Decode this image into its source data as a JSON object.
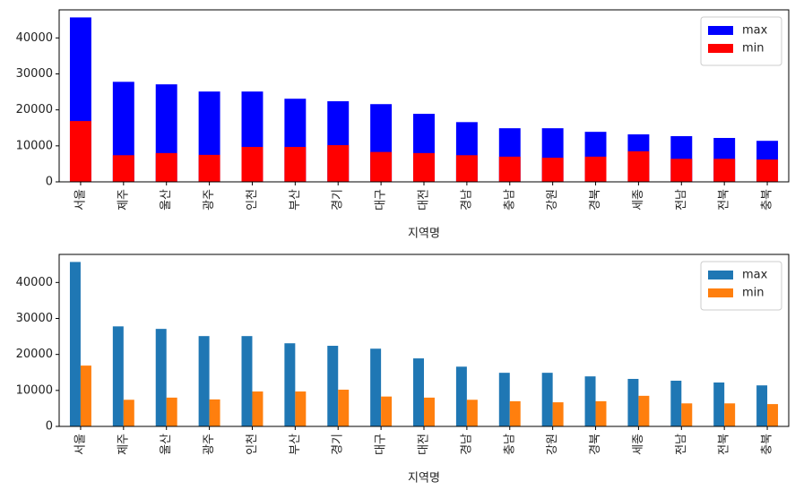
{
  "chart_data": [
    {
      "type": "bar",
      "barmode": "overlay",
      "x_label": "지역명",
      "categories": [
        "서울",
        "제주",
        "울산",
        "광주",
        "인천",
        "부산",
        "경기",
        "대구",
        "대전",
        "경남",
        "충남",
        "강원",
        "경북",
        "세종",
        "전남",
        "전북",
        "충북"
      ],
      "series": [
        {
          "name": "max",
          "color": "#0000ff",
          "values": [
            45700,
            27800,
            27100,
            25100,
            25100,
            23100,
            22400,
            21600,
            18900,
            16600,
            14900,
            14900,
            13900,
            13200,
            12700,
            12200,
            11400
          ]
        },
        {
          "name": "min",
          "color": "#ff0000",
          "values": [
            16900,
            7400,
            8000,
            7500,
            9700,
            9700,
            10200,
            8300,
            8000,
            7400,
            7000,
            6700,
            7000,
            8500,
            6400,
            6400,
            6200
          ]
        }
      ],
      "ylim": [
        0,
        47800
      ],
      "yticks": [
        0,
        10000,
        20000,
        30000,
        40000
      ],
      "legend": "upper right"
    },
    {
      "type": "bar",
      "barmode": "group",
      "x_label": "지역명",
      "categories": [
        "서울",
        "제주",
        "울산",
        "광주",
        "인천",
        "부산",
        "경기",
        "대구",
        "대전",
        "경남",
        "충남",
        "강원",
        "경북",
        "세종",
        "전남",
        "전북",
        "충북"
      ],
      "series": [
        {
          "name": "max",
          "color": "#1f77b4",
          "values": [
            45700,
            27800,
            27100,
            25100,
            25100,
            23100,
            22400,
            21600,
            18900,
            16600,
            14900,
            14900,
            13900,
            13200,
            12700,
            12200,
            11400
          ]
        },
        {
          "name": "min",
          "color": "#ff7f0e",
          "values": [
            16900,
            7400,
            8000,
            7500,
            9700,
            9700,
            10200,
            8300,
            8000,
            7400,
            7000,
            6700,
            7000,
            8500,
            6400,
            6400,
            6200
          ]
        }
      ],
      "ylim": [
        0,
        47800
      ],
      "yticks": [
        0,
        10000,
        20000,
        30000,
        40000
      ],
      "legend": "upper right"
    }
  ]
}
